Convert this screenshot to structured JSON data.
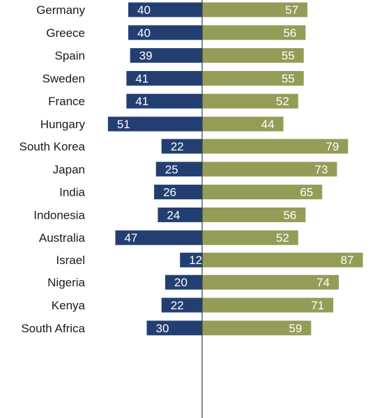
{
  "chart_data": {
    "type": "bar",
    "orientation": "horizontal-diverging",
    "categories": [
      "Germany",
      "Greece",
      "Spain",
      "Sweden",
      "France",
      "Hungary",
      "South Korea",
      "Japan",
      "India",
      "Indonesia",
      "Australia",
      "Israel",
      "Nigeria",
      "Kenya",
      "South Africa"
    ],
    "groups": [
      [
        "Germany",
        "Greece",
        "Spain",
        "Sweden",
        "France",
        "Hungary"
      ],
      [
        "South Korea",
        "Japan",
        "India",
        "Indonesia",
        "Australia"
      ],
      [
        "Israel"
      ],
      [
        "Nigeria",
        "Kenya",
        "South Africa"
      ]
    ],
    "series": [
      {
        "values": [
          40,
          40,
          39,
          41,
          41,
          51,
          22,
          25,
          26,
          24,
          47,
          12,
          20,
          22,
          30
        ],
        "color": "#233f72",
        "side": "left"
      },
      {
        "values": [
          57,
          56,
          55,
          55,
          52,
          44,
          79,
          73,
          65,
          56,
          52,
          87,
          74,
          71,
          59
        ],
        "color": "#949c58",
        "side": "right"
      }
    ],
    "xlim": [
      0,
      100
    ],
    "grid": false,
    "legend": "none"
  },
  "colors": {
    "axis_line": "#3a3a3a",
    "text": "#1a1a1a",
    "value_text": "#ffffff"
  }
}
